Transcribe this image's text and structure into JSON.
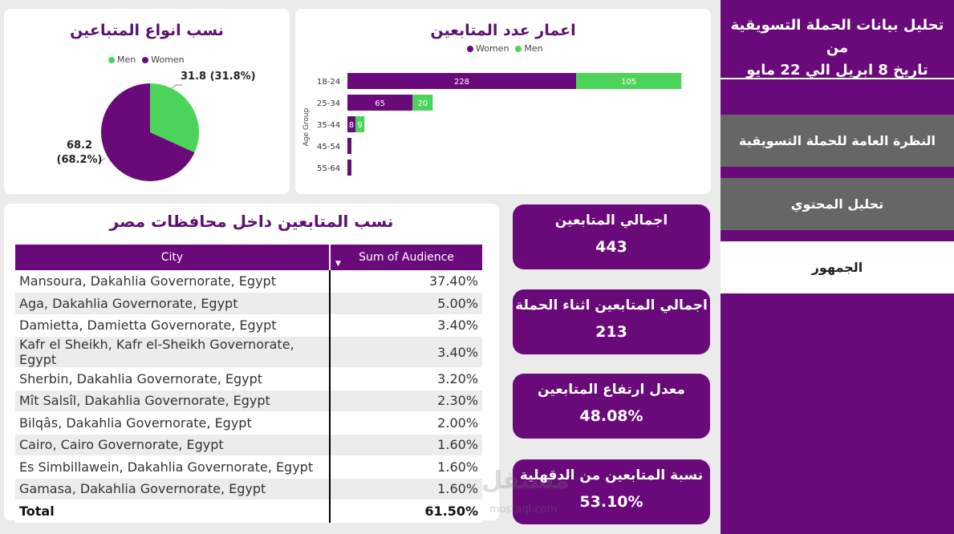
{
  "pie": {
    "title": "نسب انواع المتباعين",
    "legend": [
      {
        "name": "Men",
        "color": "#4cd45a"
      },
      {
        "name": "Women",
        "color": "#6a0a7a"
      }
    ],
    "label_men": "31.8 (31.8%)",
    "label_women_value": "68.2",
    "label_women_pct": "(68.2%)"
  },
  "bar": {
    "title": "اعمار عدد المتابعين",
    "legend": [
      {
        "name": "Women",
        "color": "#6a0a7a"
      },
      {
        "name": "Men",
        "color": "#4cd45a"
      }
    ],
    "ylabel": "Age Group"
  },
  "chart_data": [
    {
      "type": "pie",
      "categories": [
        "Men",
        "Women"
      ],
      "values": [
        31.8,
        68.2
      ],
      "colors": [
        "#4cd45a",
        "#6a0a7a"
      ],
      "legend_placement": "top"
    },
    {
      "type": "bar",
      "orientation": "horizontal",
      "stacked": true,
      "categories": [
        "18-24",
        "25-34",
        "35-44",
        "45-54",
        "55-64"
      ],
      "series": [
        {
          "name": "Women",
          "color": "#6a0a7a",
          "values": [
            228,
            65,
            8,
            4,
            4
          ]
        },
        {
          "name": "Men",
          "color": "#4cd45a",
          "values": [
            105,
            20,
            9,
            0,
            0
          ]
        }
      ],
      "data_labels": [
        [
          "228",
          "105"
        ],
        [
          "65",
          "20"
        ],
        [
          "8",
          "9"
        ],
        [
          "",
          ""
        ],
        [
          "",
          ""
        ]
      ],
      "ylabel": "Age Group",
      "xlim": [
        0,
        340
      ],
      "legend_placement": "top"
    }
  ],
  "table": {
    "title": "نسب المتابعين داخل محافظات مصر",
    "headers": {
      "city": "City",
      "audience": "Sum of Audience"
    },
    "rows": [
      {
        "city": "Mansoura, Dakahlia Governorate, Egypt",
        "audience": "37.40%"
      },
      {
        "city": "Aga, Dakahlia Governorate, Egypt",
        "audience": "5.00%"
      },
      {
        "city": "Damietta, Damietta Governorate, Egypt",
        "audience": "3.40%"
      },
      {
        "city": "Kafr el Sheikh, Kafr el-Sheikh Governorate, Egypt",
        "audience": "3.40%"
      },
      {
        "city": "Sherbin, Dakahlia Governorate, Egypt",
        "audience": "3.20%"
      },
      {
        "city": "Mît Salsîl, Dakahlia Governorate, Egypt",
        "audience": "2.30%"
      },
      {
        "city": "Bilqâs, Dakahlia Governorate, Egypt",
        "audience": "2.00%"
      },
      {
        "city": "Cairo, Cairo Governorate, Egypt",
        "audience": "1.60%"
      },
      {
        "city": "Es Simbillawein, Dakahlia Governorate, Egypt",
        "audience": "1.60%"
      },
      {
        "city": "Gamasa, Dakahlia Governorate, Egypt",
        "audience": "1.60%"
      }
    ],
    "total": {
      "label": "Total",
      "value": "61.50%"
    }
  },
  "kpis": [
    {
      "label": "اجمالي المتابعين",
      "value": "443"
    },
    {
      "label": "اجمالي المتابعين اثناء الحملة",
      "value": "213"
    },
    {
      "label": "معدل ارتفاع المتابعين",
      "value": "48.08%"
    },
    {
      "label": "نسبة المتابعين من الدقهلية",
      "value": "53.10%"
    }
  ],
  "sidebar": {
    "title_line1": "تحليل بيانات الحملة التسويقية من",
    "title_line2": "تاريخ 8 ابريل الي 22 مايو",
    "nav": [
      {
        "label": "النظرة العامة للحملة التسويقية",
        "state": "gray"
      },
      {
        "label": "تحليل المحتوي",
        "state": "gray"
      },
      {
        "label": "الجمهور",
        "state": "active"
      }
    ]
  },
  "watermark": {
    "text": "مستقل",
    "sub": "mostaql.com"
  }
}
